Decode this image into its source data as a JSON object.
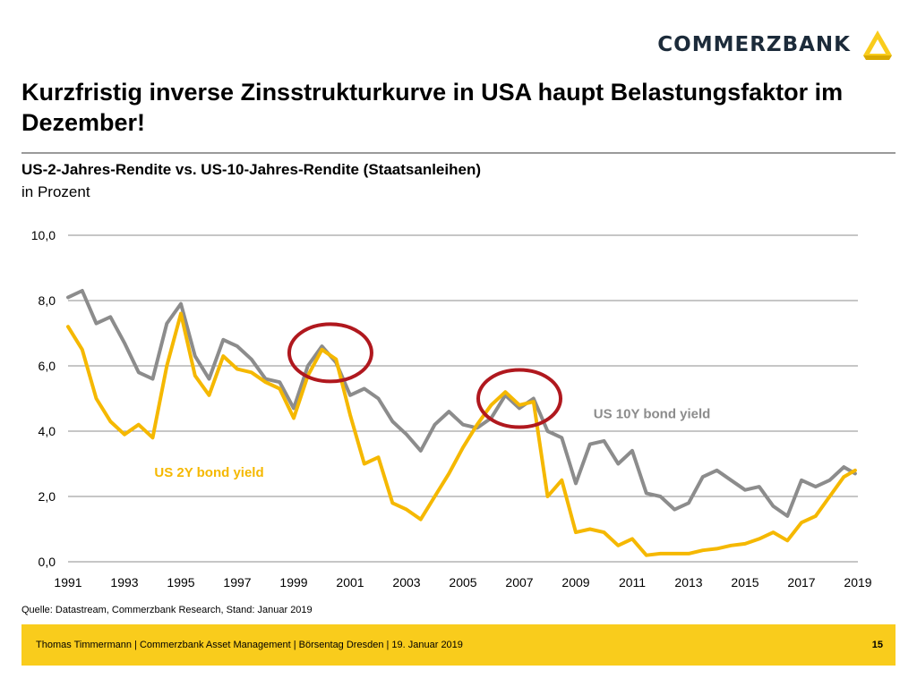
{
  "logo": {
    "text": "COMMERZBANK",
    "icon": "commerzbank-ribbon-logo"
  },
  "slide": {
    "title": "Kurzfristig inverse Zinsstrukturkurve in USA haupt Belastungsfaktor im Dezember!",
    "subtitle": "US-2-Jahres-Rendite vs. US-10-Jahres-Rendite (Staatsanleihen)",
    "unit": "in Prozent",
    "source": "Quelle: Datastream, Commerzbank Research, Stand: Januar 2019"
  },
  "footer": {
    "text": "Thomas Timmermann | Commerzbank Asset Management | Börsentag Dresden | 19. Januar 2019",
    "page": "15"
  },
  "colors": {
    "us10y": "#8c8c8c",
    "us2y": "#f5b800",
    "highlight": "#b0181e",
    "gridline": "#8c8c8c"
  },
  "chart_data": {
    "type": "line",
    "title": "US-2-Jahres-Rendite vs. US-10-Jahres-Rendite (Staatsanleihen)",
    "ylabel": "in Prozent",
    "xlabel": "",
    "xlim": [
      1991.0,
      2019.0
    ],
    "ylim": [
      0.0,
      10.0
    ],
    "grid": true,
    "x_ticks": [
      "1991",
      "1993",
      "1995",
      "1997",
      "1999",
      "2001",
      "2003",
      "2005",
      "2007",
      "2009",
      "2011",
      "2013",
      "2015",
      "2017",
      "2019"
    ],
    "y_ticks": [
      "0,0",
      "2,0",
      "4,0",
      "6,0",
      "8,0",
      "10,0"
    ],
    "x": [
      1991.0,
      1991.5,
      1992.0,
      1992.5,
      1993.0,
      1993.5,
      1994.0,
      1994.5,
      1995.0,
      1995.5,
      1996.0,
      1996.5,
      1997.0,
      1997.5,
      1998.0,
      1998.5,
      1999.0,
      1999.5,
      2000.0,
      2000.5,
      2001.0,
      2001.5,
      2002.0,
      2002.5,
      2003.0,
      2003.5,
      2004.0,
      2004.5,
      2005.0,
      2005.5,
      2006.0,
      2006.5,
      2007.0,
      2007.5,
      2008.0,
      2008.5,
      2009.0,
      2009.5,
      2010.0,
      2010.5,
      2011.0,
      2011.5,
      2012.0,
      2012.5,
      2013.0,
      2013.5,
      2014.0,
      2014.5,
      2015.0,
      2015.5,
      2016.0,
      2016.5,
      2017.0,
      2017.5,
      2018.0,
      2018.5,
      2018.9
    ],
    "series": [
      {
        "name": "US 10Y bond yield",
        "label": "US 10Y bond yield",
        "values": [
          8.1,
          8.3,
          7.3,
          7.5,
          6.7,
          5.8,
          5.6,
          7.3,
          7.9,
          6.3,
          5.6,
          6.8,
          6.6,
          6.2,
          5.6,
          5.5,
          4.7,
          6.0,
          6.6,
          6.1,
          5.1,
          5.3,
          5.0,
          4.3,
          3.9,
          3.4,
          4.2,
          4.6,
          4.2,
          4.1,
          4.4,
          5.1,
          4.7,
          5.0,
          4.0,
          3.8,
          2.4,
          3.6,
          3.7,
          3.0,
          3.4,
          2.1,
          2.0,
          1.6,
          1.8,
          2.6,
          2.8,
          2.5,
          2.2,
          2.3,
          1.7,
          1.4,
          2.5,
          2.3,
          2.5,
          2.9,
          2.7
        ]
      },
      {
        "name": "US 2Y bond yield",
        "label": "US 2Y bond yield",
        "values": [
          7.2,
          6.5,
          5.0,
          4.3,
          3.9,
          4.2,
          3.8,
          6.0,
          7.6,
          5.7,
          5.1,
          6.3,
          5.9,
          5.8,
          5.5,
          5.3,
          4.4,
          5.7,
          6.5,
          6.2,
          4.5,
          3.0,
          3.2,
          1.8,
          1.6,
          1.3,
          2.0,
          2.7,
          3.5,
          4.2,
          4.8,
          5.2,
          4.8,
          4.9,
          2.0,
          2.5,
          0.9,
          1.0,
          0.9,
          0.5,
          0.7,
          0.2,
          0.25,
          0.25,
          0.25,
          0.35,
          0.4,
          0.5,
          0.55,
          0.7,
          0.9,
          0.65,
          1.2,
          1.4,
          2.0,
          2.6,
          2.8
        ]
      }
    ],
    "annotations": [
      {
        "type": "circle",
        "x": 2000.3,
        "y": 6.4
      },
      {
        "type": "circle",
        "x": 2007.0,
        "y": 5.0
      }
    ]
  }
}
